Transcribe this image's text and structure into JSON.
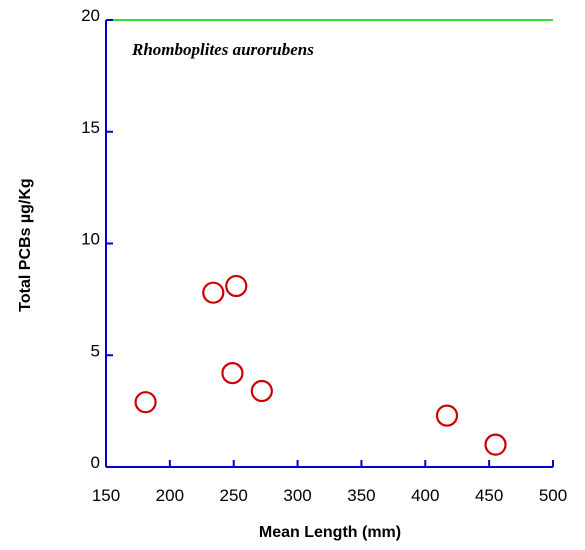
{
  "chart_data": {
    "type": "scatter",
    "title": "",
    "annotation": "Rhomboplites aurorubens",
    "xlabel": "Mean Length (mm)",
    "ylabel": "Total PCBs µg/Kg",
    "xlim": [
      150,
      500
    ],
    "ylim": [
      0,
      20
    ],
    "xticks": [
      150,
      200,
      250,
      300,
      350,
      400,
      450,
      500
    ],
    "yticks": [
      0,
      5,
      10,
      15,
      20
    ],
    "grid": false,
    "colors": {
      "axis": "#0000cc",
      "top_line": "#33dd33",
      "marker": "#cc0000"
    },
    "series": [
      {
        "points": [
          {
            "x": 181,
            "y": 2.9
          },
          {
            "x": 234,
            "y": 7.8
          },
          {
            "x": 252,
            "y": 8.1
          },
          {
            "x": 249,
            "y": 4.2
          },
          {
            "x": 272,
            "y": 3.4
          },
          {
            "x": 417,
            "y": 2.3
          },
          {
            "x": 455,
            "y": 1.0
          }
        ]
      }
    ]
  }
}
